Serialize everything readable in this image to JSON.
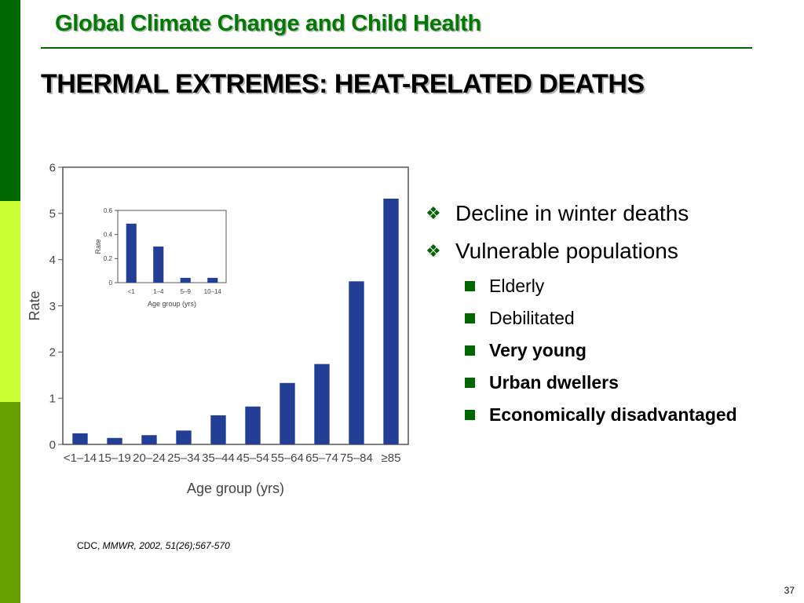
{
  "header": {
    "title": "Global Climate Change and Child Health"
  },
  "slide": {
    "title": "THERMAL EXTREMES: HEAT-RELATED DEATHS"
  },
  "colors": {
    "bar": "#233f95",
    "header_green": "#007a00",
    "dark_green": "#006600",
    "lime": "#ccff33",
    "mid_green": "#66a000"
  },
  "bullets": {
    "items": [
      {
        "text": "Decline in winter deaths",
        "icon": "diamond-bullet-icon"
      },
      {
        "text": "Vulnerable populations",
        "icon": "diamond-bullet-icon"
      }
    ],
    "sub_items": [
      {
        "text": "Elderly",
        "bold": false
      },
      {
        "text": "Debilitated",
        "bold": false
      },
      {
        "text": "Very young",
        "bold": true
      },
      {
        "text": "Urban dwellers",
        "bold": true
      },
      {
        "text": "Economically disadvantaged",
        "bold": true
      }
    ]
  },
  "citation": {
    "prefix": "CDC, ",
    "source": "MMWR, 2002, 51(26);567-570"
  },
  "page_number": "37",
  "chart_data": [
    {
      "type": "bar",
      "categories": [
        "<1–14",
        "15–19",
        "20–24",
        "25–34",
        "35–44",
        "45–54",
        "55–64",
        "65–74",
        "75–84",
        "≥85"
      ],
      "values": [
        0.24,
        0.14,
        0.2,
        0.3,
        0.63,
        0.82,
        1.33,
        1.74,
        3.53,
        5.32
      ],
      "ylabel": "Rate",
      "xlabel": "Age group (yrs)",
      "ylim": [
        0,
        6
      ],
      "yticks": [
        "0",
        "1",
        "2",
        "3",
        "4",
        "5",
        "6"
      ],
      "grid": false
    },
    {
      "type": "bar",
      "categories": [
        "<1",
        "1–4",
        "5–9",
        "10–14"
      ],
      "values": [
        0.49,
        0.3,
        0.04,
        0.04
      ],
      "ylabel": "Rate",
      "xlabel": "Age group (yrs)",
      "ylim": [
        0,
        0.6
      ],
      "yticks": [
        "0",
        "0.2",
        "0.4",
        "0.6"
      ],
      "grid": false
    }
  ]
}
